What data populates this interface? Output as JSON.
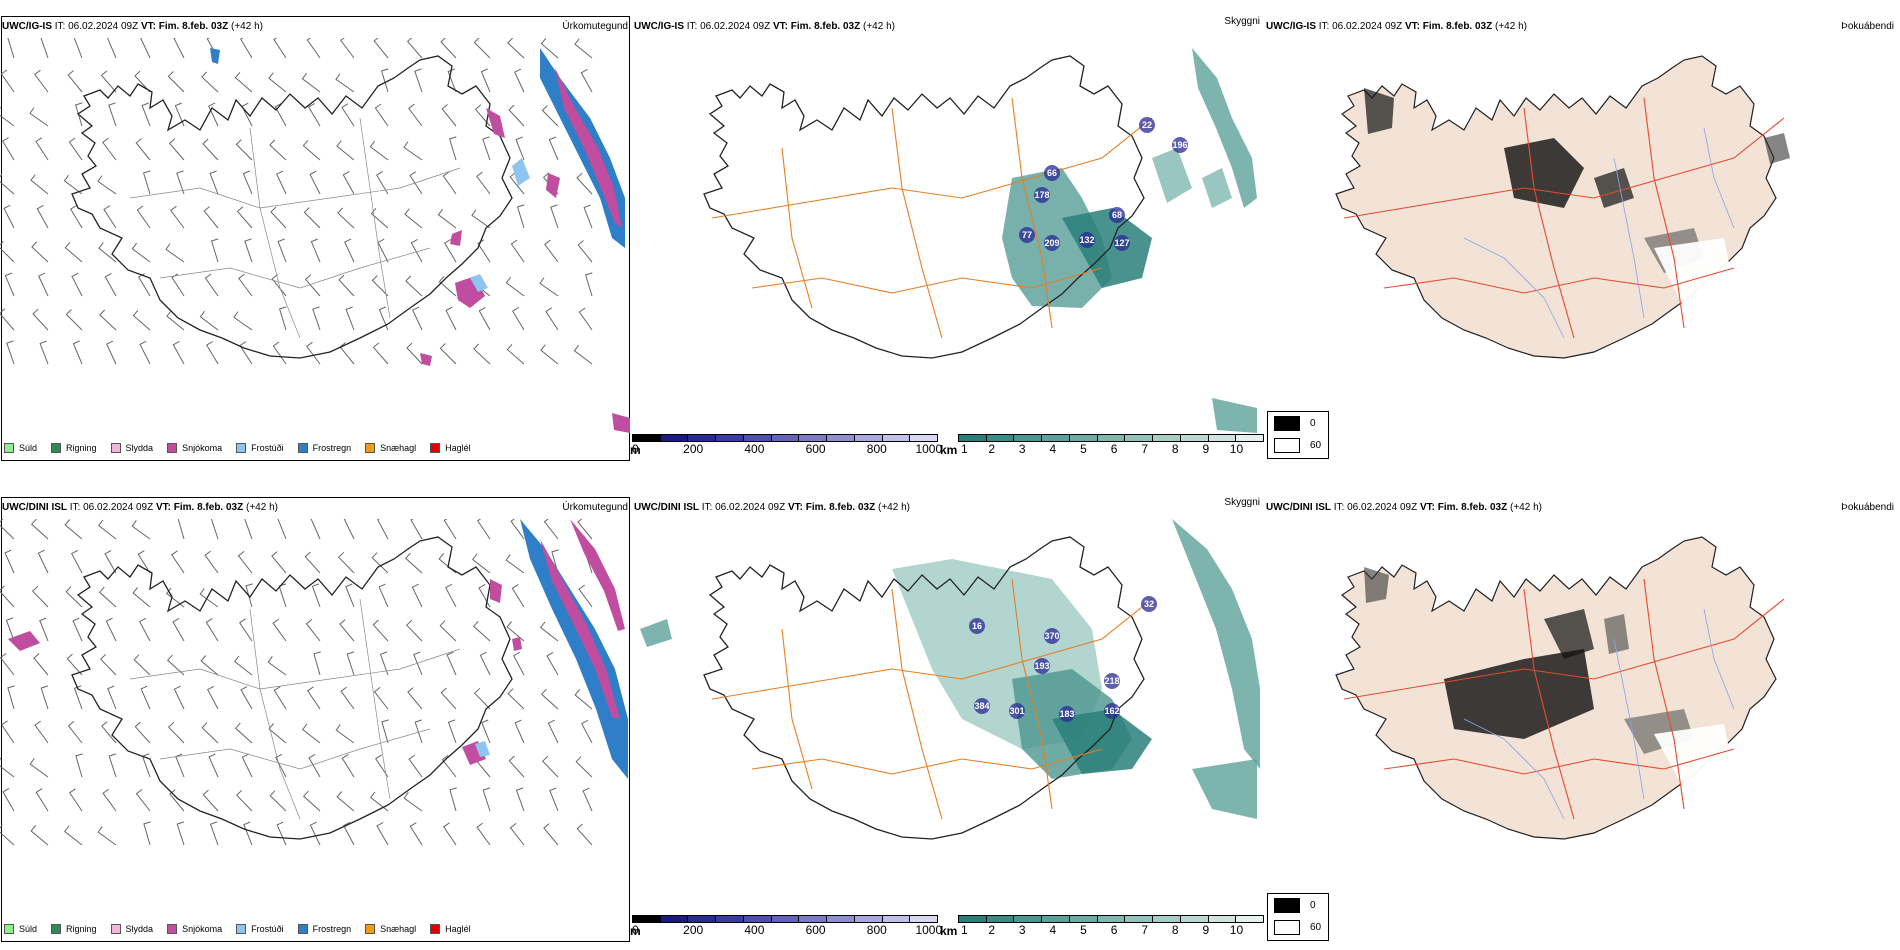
{
  "panels": [
    {
      "model": "UWC/IG-IS",
      "it_label": "IT:",
      "it_value": "06.02.2024 09Z",
      "vt_label": "VT:",
      "vt_value": "Fim. 8.feb. 03Z",
      "lead": "(+42 h)",
      "titles": [
        "Úrkomutegund",
        "Skyggni",
        "Þokuábendi"
      ]
    },
    {
      "model": "UWC/DINI ISL",
      "it_label": "IT:",
      "it_value": "06.02.2024 09Z",
      "vt_label": "VT:",
      "vt_value": "Fim. 8.feb. 03Z",
      "lead": "(+42 h)",
      "titles": [
        "Úrkomutegund",
        "Skyggni",
        "Þokuábendi"
      ]
    }
  ],
  "precip_legend": [
    {
      "label": "Súld",
      "color": "#90ee90"
    },
    {
      "label": "Rigning",
      "color": "#2e8b57"
    },
    {
      "label": "Slydda",
      "color": "#f4b6d8"
    },
    {
      "label": "Snjókoma",
      "color": "#c04da0"
    },
    {
      "label": "Frostúði",
      "color": "#8ec5f0"
    },
    {
      "label": "Frostregn",
      "color": "#2f7fc8"
    },
    {
      "label": "Snæhagl",
      "color": "#f39c12"
    },
    {
      "label": "Haglél",
      "color": "#e00000"
    }
  ],
  "ceiling_bar": {
    "unit": "m",
    "labels": [
      "0",
      "200",
      "400",
      "600",
      "800",
      "1000"
    ],
    "colors": [
      "#000000",
      "#1a1a80",
      "#2a2a95",
      "#3b3ba5",
      "#4f4fb0",
      "#6464bb",
      "#7a7ac5",
      "#9090d0",
      "#a8a8dc",
      "#c0c0e8",
      "#d8d8f2"
    ]
  },
  "visibility_bar": {
    "unit": "km",
    "labels": [
      "1",
      "2",
      "3",
      "4",
      "5",
      "6",
      "7",
      "8",
      "9",
      "10"
    ],
    "colors": [
      "#2a7f7a",
      "#3a8a85",
      "#4b968f",
      "#5ca19a",
      "#6eaca5",
      "#80b8b0",
      "#93c3bc",
      "#a6cec8",
      "#bad9d4",
      "#cfe4e1",
      "#e6f1ef"
    ]
  },
  "fog_legend": [
    {
      "label": "0",
      "color": "#000000"
    },
    {
      "label": "60",
      "color": "#ffffff"
    }
  ],
  "map_values": {
    "row0": [
      "66",
      "178",
      "68",
      "77",
      "209",
      "132",
      "127",
      "22",
      "196"
    ],
    "row1": [
      "370",
      "193",
      "218",
      "384",
      "301",
      "183",
      "162",
      "16",
      "32"
    ]
  }
}
